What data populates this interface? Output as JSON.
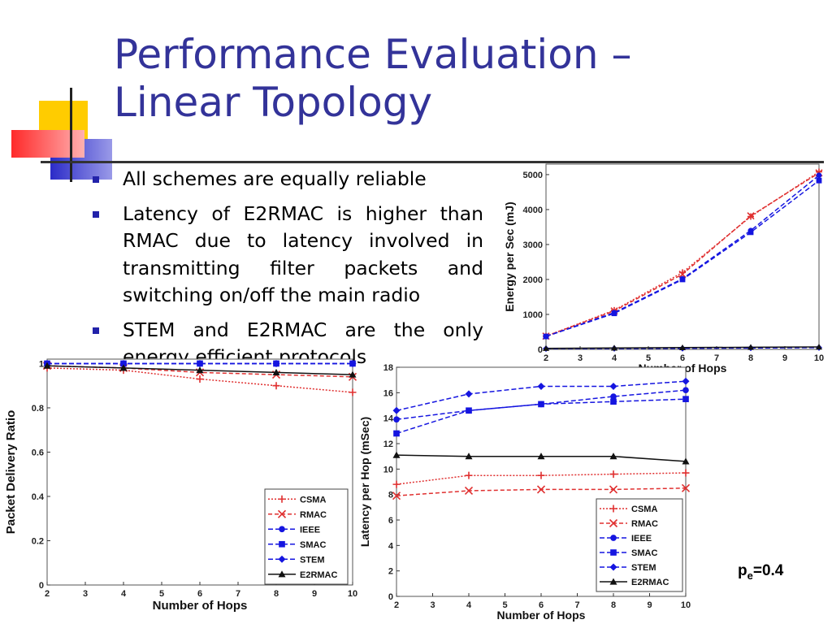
{
  "slide": {
    "title_lines": [
      "Performance Evaluation –",
      "Linear Topology"
    ],
    "bullets": [
      "All schemes are equally reliable",
      "Latency of E2RMAC is higher than RMAC due to latency involved in transmitting filter packets and switching on/off the main radio",
      "STEM and E2RMAC are the only energy efficient protocols"
    ],
    "annotation": {
      "base": "p",
      "sub": "e",
      "rest": "=0.4"
    },
    "colors": {
      "title": "#333399",
      "bullet": "#2222aa",
      "deco_yellow": "#ffcc00",
      "deco_blue": "#3333cc",
      "deco_red": "#ff3333"
    }
  },
  "series_styles": [
    {
      "name": "CSMA",
      "color": "#e03030",
      "dash": "2,2",
      "marker": "plus"
    },
    {
      "name": "RMAC",
      "color": "#e03030",
      "dash": "5,3",
      "marker": "x"
    },
    {
      "name": "IEEE",
      "color": "#1515e0",
      "dash": "6,3",
      "marker": "circle"
    },
    {
      "name": "SMAC",
      "color": "#1515e0",
      "dash": "6,3",
      "marker": "square"
    },
    {
      "name": "STEM",
      "color": "#1515e0",
      "dash": "6,3",
      "marker": "diamond"
    },
    {
      "name": "E2RMAC",
      "color": "#111111",
      "dash": "",
      "marker": "triangle"
    }
  ],
  "chart_data": [
    {
      "id": "pdr",
      "type": "line",
      "xlabel": "Number of Hops",
      "ylabel": "Packet Delivery Ratio",
      "xlim": [
        2,
        10
      ],
      "ylim": [
        0,
        1.02
      ],
      "xticks": [
        2,
        3,
        4,
        5,
        6,
        7,
        8,
        9,
        10
      ],
      "yticks": [
        0,
        0.2,
        0.4,
        0.6,
        0.8,
        1
      ],
      "ytick_labels": [
        "0",
        "0.2",
        "0.4",
        "0.6",
        "0.8",
        "1"
      ],
      "x": [
        2,
        4,
        6,
        8,
        10
      ],
      "legend": "lower-right",
      "series": [
        {
          "name": "CSMA",
          "values": [
            0.98,
            0.97,
            0.93,
            0.9,
            0.87
          ]
        },
        {
          "name": "RMAC",
          "values": [
            0.99,
            0.98,
            0.96,
            0.95,
            0.94
          ]
        },
        {
          "name": "IEEE",
          "values": [
            1.0,
            1.0,
            1.0,
            1.0,
            1.0
          ]
        },
        {
          "name": "SMAC",
          "values": [
            1.0,
            1.0,
            1.0,
            1.0,
            1.0
          ]
        },
        {
          "name": "STEM",
          "values": [
            1.0,
            1.0,
            1.0,
            1.0,
            1.0
          ]
        },
        {
          "name": "E2RMAC",
          "values": [
            0.99,
            0.98,
            0.97,
            0.96,
            0.95
          ]
        }
      ]
    },
    {
      "id": "latency",
      "type": "line",
      "xlabel": "Number of Hops",
      "ylabel": "Latency per Hop (mSec)",
      "xlim": [
        2,
        10
      ],
      "ylim": [
        0,
        18
      ],
      "xticks": [
        2,
        3,
        4,
        5,
        6,
        7,
        8,
        9,
        10
      ],
      "yticks": [
        0,
        2,
        4,
        6,
        8,
        10,
        12,
        14,
        16,
        18
      ],
      "ytick_labels": [
        "0",
        "2",
        "4",
        "6",
        "8",
        "10",
        "12",
        "14",
        "16",
        "18"
      ],
      "x": [
        2,
        4,
        6,
        8,
        10
      ],
      "legend": "lower-right",
      "series": [
        {
          "name": "CSMA",
          "values": [
            8.8,
            9.5,
            9.5,
            9.6,
            9.7
          ]
        },
        {
          "name": "RMAC",
          "values": [
            7.9,
            8.3,
            8.4,
            8.4,
            8.5
          ]
        },
        {
          "name": "IEEE",
          "values": [
            13.9,
            14.6,
            15.1,
            15.7,
            16.2
          ]
        },
        {
          "name": "SMAC",
          "values": [
            12.8,
            14.6,
            15.1,
            15.3,
            15.5
          ]
        },
        {
          "name": "STEM",
          "values": [
            14.6,
            15.9,
            16.5,
            16.5,
            16.9
          ]
        },
        {
          "name": "E2RMAC",
          "values": [
            11.1,
            11.0,
            11.0,
            11.0,
            10.6
          ]
        }
      ]
    },
    {
      "id": "energy",
      "type": "line",
      "xlabel": "Number of Hops",
      "ylabel": "Energy per Sec (mJ)",
      "xlim": [
        2,
        10
      ],
      "ylim": [
        0,
        5300
      ],
      "xticks": [
        2,
        3,
        4,
        5,
        6,
        7,
        8,
        9,
        10
      ],
      "yticks": [
        0,
        1000,
        2000,
        3000,
        4000,
        5000
      ],
      "ytick_labels": [
        "0",
        "1000",
        "2000",
        "3000",
        "4000",
        "5000"
      ],
      "x": [
        2,
        4,
        6,
        8,
        10
      ],
      "legend": "none",
      "series": [
        {
          "name": "CSMA",
          "values": [
            380,
            1120,
            2200,
            3800,
            5080
          ]
        },
        {
          "name": "RMAC",
          "values": [
            380,
            1100,
            2150,
            3820,
            5050
          ]
        },
        {
          "name": "IEEE",
          "values": [
            370,
            1050,
            2020,
            3400,
            4980
          ]
        },
        {
          "name": "SMAC",
          "values": [
            370,
            1030,
            2000,
            3350,
            4830
          ]
        },
        {
          "name": "STEM",
          "values": [
            20,
            25,
            30,
            40,
            50
          ]
        },
        {
          "name": "E2RMAC",
          "values": [
            30,
            40,
            50,
            60,
            70
          ]
        }
      ]
    }
  ]
}
